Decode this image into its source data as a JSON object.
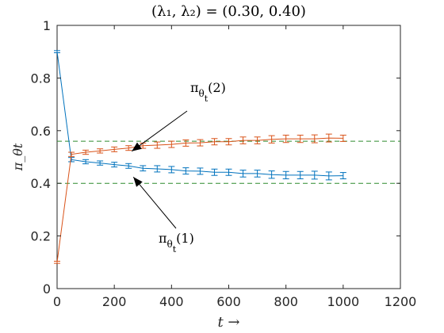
{
  "chart_data": {
    "type": "line",
    "title": "(λ₁, λ₂) = (0.30, 0.40)",
    "xlabel": "t →",
    "ylabel": "π_θt",
    "xlim": [
      0,
      1200
    ],
    "ylim": [
      0,
      1
    ],
    "xticks": [
      0,
      200,
      400,
      600,
      800,
      1000,
      1200
    ],
    "xtick_labels": [
      "0",
      "200",
      "400",
      "600",
      "800",
      "1000",
      "1200"
    ],
    "yticks": [
      0,
      0.2,
      0.4,
      0.6,
      0.8,
      1
    ],
    "ytick_labels": [
      "0",
      "0.2",
      "0.4",
      "0.6",
      "0.8",
      "1"
    ],
    "grid": false,
    "x": [
      0,
      50,
      100,
      150,
      200,
      250,
      300,
      350,
      400,
      450,
      500,
      550,
      600,
      650,
      700,
      750,
      800,
      850,
      900,
      950,
      1000
    ],
    "series": [
      {
        "name": "π_θt(1)",
        "color": "#0072BD",
        "values": [
          0.9,
          0.49,
          0.482,
          0.477,
          0.471,
          0.466,
          0.457,
          0.455,
          0.452,
          0.447,
          0.446,
          0.442,
          0.442,
          0.437,
          0.437,
          0.433,
          0.431,
          0.431,
          0.431,
          0.428,
          0.429
        ],
        "errors": [
          0.004,
          0.008,
          0.008,
          0.008,
          0.009,
          0.009,
          0.01,
          0.012,
          0.012,
          0.012,
          0.012,
          0.012,
          0.012,
          0.013,
          0.013,
          0.014,
          0.014,
          0.014,
          0.015,
          0.015,
          0.012
        ]
      },
      {
        "name": "π_θt(2)",
        "color": "#D95319",
        "values": [
          0.1,
          0.51,
          0.518,
          0.523,
          0.529,
          0.534,
          0.543,
          0.545,
          0.548,
          0.553,
          0.554,
          0.558,
          0.558,
          0.563,
          0.563,
          0.567,
          0.569,
          0.569,
          0.569,
          0.572,
          0.571
        ],
        "errors": [
          0.004,
          0.008,
          0.008,
          0.008,
          0.009,
          0.009,
          0.01,
          0.012,
          0.012,
          0.012,
          0.012,
          0.012,
          0.012,
          0.013,
          0.013,
          0.014,
          0.014,
          0.014,
          0.015,
          0.015,
          0.012
        ]
      }
    ],
    "reference_lines": [
      {
        "y": 0.4,
        "color": "#2E8B2E",
        "style": "dashed"
      },
      {
        "y": 0.56,
        "color": "#2E8B2E",
        "style": "dashed"
      }
    ],
    "annotations": [
      {
        "label_main": "π",
        "label_sub": "θ",
        "label_subsub": "t",
        "label_tail": "(2)",
        "series": 1,
        "x": 250
      },
      {
        "label_main": "π",
        "label_sub": "θ",
        "label_subsub": "t",
        "label_tail": "(1)",
        "series": 0,
        "x": 250
      }
    ]
  }
}
